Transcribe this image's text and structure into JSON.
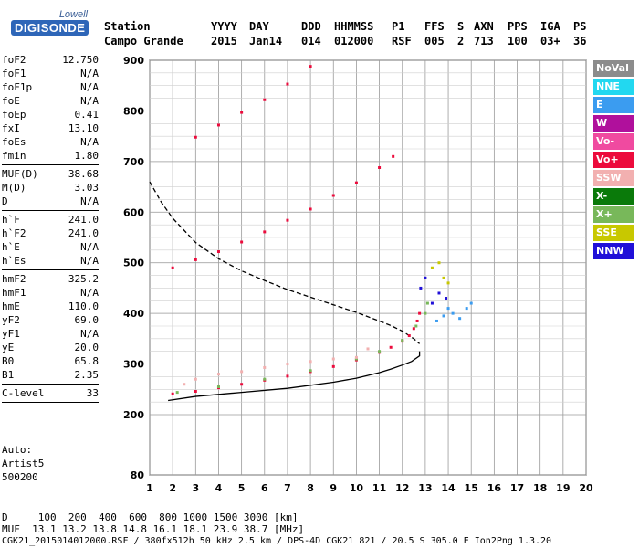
{
  "logo": {
    "top": "Lowell",
    "bottom": "DIGISONDE"
  },
  "header": {
    "labels": [
      "Station",
      "YYYY",
      "DAY",
      "DDD",
      "HHMMSS",
      "P1",
      "FFS",
      "S",
      "AXN",
      "PPS",
      "IGA",
      "PS"
    ],
    "values": [
      "Campo Grande",
      "2015",
      "Jan14",
      "014",
      "012000",
      "RSF",
      "005",
      "2",
      "713",
      "100",
      "03+",
      "36"
    ]
  },
  "params": [
    {
      "k": "foF2",
      "v": "12.750"
    },
    {
      "k": "foF1",
      "v": "N/A"
    },
    {
      "k": "foF1p",
      "v": "N/A"
    },
    {
      "k": "foE",
      "v": "N/A"
    },
    {
      "k": "foEp",
      "v": "0.41"
    },
    {
      "k": "fxI",
      "v": "13.10"
    },
    {
      "k": "foEs",
      "v": "N/A"
    },
    {
      "k": "fmin",
      "v": "1.80"
    },
    {
      "sep": true
    },
    {
      "k": "MUF(D)",
      "v": "38.68"
    },
    {
      "k": "M(D)",
      "v": "3.03"
    },
    {
      "k": "D",
      "v": "N/A"
    },
    {
      "sep": true
    },
    {
      "k": "h`F",
      "v": "241.0"
    },
    {
      "k": "h`F2",
      "v": "241.0"
    },
    {
      "k": "h`E",
      "v": "N/A"
    },
    {
      "k": "h`Es",
      "v": "N/A"
    },
    {
      "sep": true
    },
    {
      "k": "hmF2",
      "v": "325.2"
    },
    {
      "k": "hmF1",
      "v": "N/A"
    },
    {
      "k": "hmE",
      "v": "110.0"
    },
    {
      "k": "yF2",
      "v": "69.0"
    },
    {
      "k": "yF1",
      "v": "N/A"
    },
    {
      "k": "yE",
      "v": "20.0"
    },
    {
      "k": "B0",
      "v": "65.8"
    },
    {
      "k": "B1",
      "v": "2.35"
    },
    {
      "sep": true
    },
    {
      "k": "C-level",
      "v": "33"
    },
    {
      "sep": true
    }
  ],
  "auto": [
    "Auto:",
    "Artist5",
    "500200"
  ],
  "legend": [
    {
      "label": "NoVal",
      "color": "#8c8c8c"
    },
    {
      "label": "NNE",
      "color": "#22d8f0"
    },
    {
      "label": "E",
      "color": "#3b9cf0"
    },
    {
      "label": "W",
      "color": "#b0109c"
    },
    {
      "label": "Vo-",
      "color": "#f04aa0"
    },
    {
      "label": "Vo+",
      "color": "#ec0b3c"
    },
    {
      "label": "SSW",
      "color": "#f2b0b0"
    },
    {
      "label": "X-",
      "color": "#0a7a0a"
    },
    {
      "label": "X+",
      "color": "#78b85a"
    },
    {
      "label": "SSE",
      "color": "#c8c800"
    },
    {
      "label": "NNW",
      "color": "#2010d8"
    }
  ],
  "footer": {
    "line1": "D     100  200  400  600  800 1000 1500 3000 [km]",
    "line2": "MUF  13.1 13.2 13.8 14.8 16.1 18.1 23.9 38.7 [MHz]",
    "line3": "CGK21_2015014012000.RSF / 380fx512h 50 kHz 2.5 km / DPS-4D CGK21 821 / 20.5 S 305.0 E Ion2Png 1.3.20"
  },
  "chart_data": {
    "type": "scatter",
    "title": "",
    "xlabel": "",
    "ylabel": "",
    "xlim": [
      1,
      20
    ],
    "ylim": [
      80,
      900
    ],
    "x_ticks": [
      1,
      2,
      3,
      4,
      5,
      6,
      7,
      8,
      9,
      10,
      11,
      12,
      13,
      14,
      15,
      16,
      17,
      18,
      19,
      20
    ],
    "y_ticks": [
      80,
      200,
      300,
      400,
      500,
      600,
      700,
      800,
      900
    ],
    "grid": true,
    "legend_placement": "right",
    "series": [
      {
        "style": "solid",
        "color": "#000000",
        "x": [
          1.8,
          3,
          5,
          7,
          9,
          10,
          11,
          11.5,
          12,
          12.4,
          12.75,
          12.75
        ],
        "y": [
          228,
          236,
          244,
          252,
          264,
          272,
          283,
          290,
          298,
          305,
          316,
          325.2
        ]
      },
      {
        "style": "dashed",
        "color": "#000000",
        "x": [
          1.0,
          1.5,
          2,
          3,
          4,
          5,
          6,
          7,
          8,
          9,
          10,
          11,
          11.5,
          12,
          12.5,
          12.75
        ],
        "y": [
          660,
          620,
          588,
          540,
          508,
          484,
          465,
          447,
          432,
          417,
          402,
          385,
          376,
          365,
          350,
          340
        ]
      },
      {
        "name": "Vo+",
        "color": "#ec0b3c",
        "x": [
          2.0,
          3.0,
          4.0,
          5.0,
          6.0,
          7.0,
          8.0,
          9.0,
          10.0,
          11.0,
          11.5,
          12.0,
          12.3,
          12.5,
          12.65,
          12.75
        ],
        "y": [
          241,
          246,
          253,
          260,
          268,
          276,
          285,
          295,
          308,
          323,
          333,
          345,
          356,
          370,
          385,
          400
        ]
      },
      {
        "name": "X+",
        "color": "#78b85a",
        "x": [
          2.2,
          4,
          6,
          8,
          10,
          11,
          12,
          12.6,
          13.0,
          13.1
        ],
        "y": [
          244,
          255,
          270,
          287,
          310,
          325,
          347,
          375,
          400,
          420
        ]
      },
      {
        "name": "Vo+",
        "color": "#ec0b3c",
        "x": [
          2.0,
          3.0,
          4.0,
          5.0,
          6.0,
          7.0,
          8.0,
          9.0,
          10.0,
          11.0,
          11.6
        ],
        "y": [
          490,
          506,
          522,
          541,
          561,
          584,
          606,
          633,
          658,
          688,
          710
        ]
      },
      {
        "name": "Vo+",
        "color": "#ec0b3c",
        "x": [
          3.0,
          4.0,
          5.0,
          6.0,
          7.0,
          8.0
        ],
        "y": [
          748,
          772,
          797,
          822,
          853,
          888
        ]
      },
      {
        "name": "SSW",
        "color": "#f2b0b0",
        "x": [
          2.5,
          3,
          4,
          5,
          6,
          7,
          8,
          9,
          10,
          10.5
        ],
        "y": [
          260,
          270,
          280,
          285,
          293,
          300,
          305,
          310,
          313,
          330
        ]
      },
      {
        "name": "E",
        "color": "#3b9cf0",
        "x": [
          13.5,
          13.8,
          14.0,
          14.2,
          14.5,
          14.8,
          15.0
        ],
        "y": [
          385,
          395,
          410,
          400,
          390,
          410,
          420
        ]
      },
      {
        "name": "NNW",
        "color": "#2010d8",
        "x": [
          12.8,
          13.0,
          13.3,
          13.6,
          13.9
        ],
        "y": [
          450,
          470,
          420,
          440,
          430
        ]
      },
      {
        "name": "SSE",
        "color": "#c8c800",
        "x": [
          13.3,
          13.6,
          13.8,
          14.0
        ],
        "y": [
          490,
          500,
          470,
          460
        ]
      }
    ]
  }
}
